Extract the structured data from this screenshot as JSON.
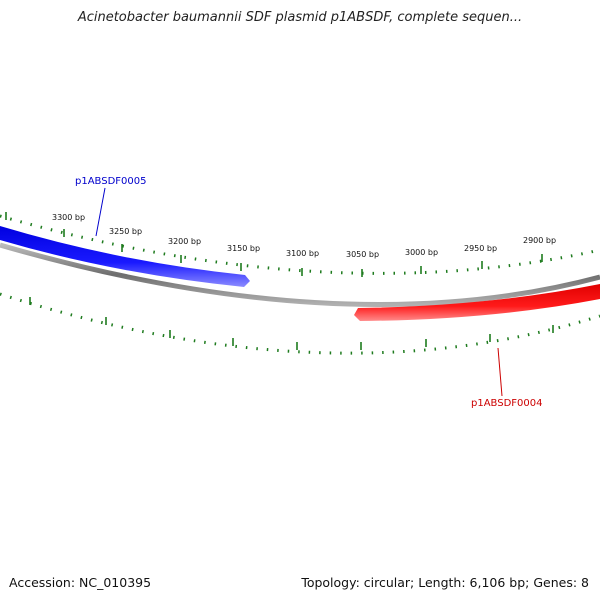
{
  "title": "Acinetobacter baumannii SDF plasmid p1ABSDF, complete sequen...",
  "footer": {
    "accession": "Accession: NC_010395",
    "stats": "Topology: circular; Length: 6,106 bp; Genes: 8"
  },
  "scale": {
    "tick_labels": [
      "3300 bp",
      "3250 bp",
      "3200 bp",
      "3150 bp",
      "3100 bp",
      "3050 bp",
      "3000 bp",
      "2950 bp",
      "2900 bp"
    ],
    "tick_color": "#1e7b1e"
  },
  "backbone": {
    "color": "#808080"
  },
  "genes": [
    {
      "name": "p1ABSDF0005",
      "strand": "plus",
      "color": "#0000ff",
      "label_color": "#0000cc"
    },
    {
      "name": "p1ABSDF0004",
      "strand": "minus",
      "color": "#ff0000",
      "label_color": "#cc0000"
    }
  ]
}
